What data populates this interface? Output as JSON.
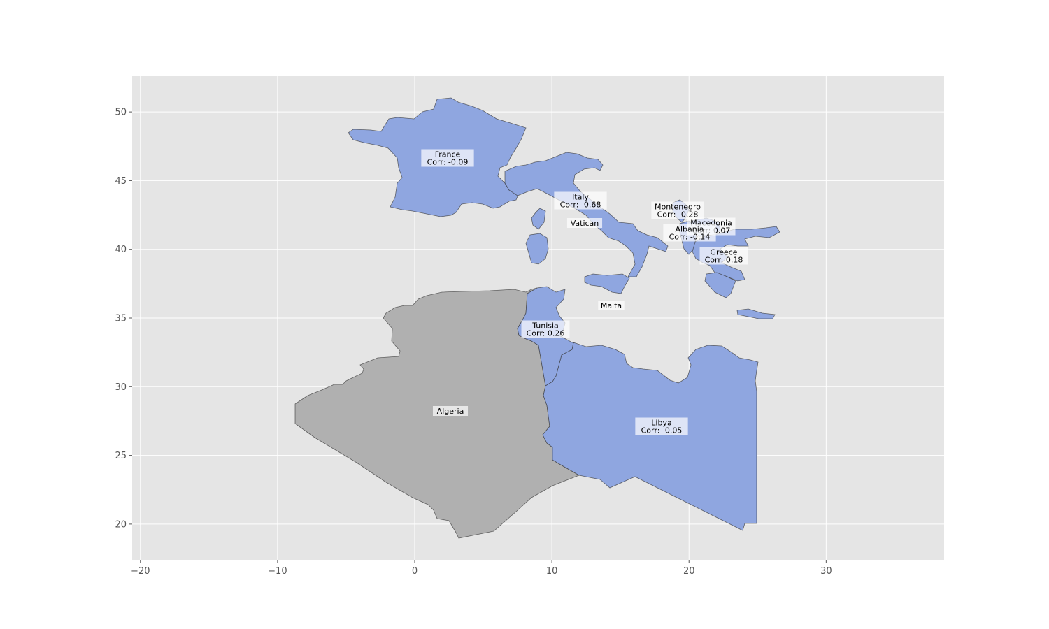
{
  "colors": {
    "axes_background": "#e5e5e5",
    "grid": "#ffffff",
    "tick_text": "#555555",
    "highlighted_country": "#8fa6e0",
    "other_country": "#b0b0b0",
    "label_box": "#ffffff"
  },
  "axes": {
    "x_ticks": [
      -20,
      -10,
      0,
      10,
      20,
      30
    ],
    "y_ticks": [
      20,
      25,
      30,
      35,
      40,
      45,
      50
    ],
    "x_tick_labels": [
      "−20",
      "−10",
      "0",
      "10",
      "20",
      "30"
    ],
    "y_tick_labels": [
      "20",
      "25",
      "30",
      "35",
      "40",
      "45",
      "50"
    ],
    "xlim": [
      -20.6,
      38.6
    ],
    "ylim": [
      17.4,
      52.6
    ],
    "grid": true
  },
  "regions": [
    {
      "name": "France",
      "corr_text": "Corr: -0.09",
      "highlighted": true
    },
    {
      "name": "Italy",
      "corr_text": "Corr: -0.68",
      "highlighted": true
    },
    {
      "name": "Vatican",
      "corr_text": "",
      "highlighted": true
    },
    {
      "name": "Montenegro",
      "corr_text": "Corr: -0.28",
      "highlighted": true
    },
    {
      "name": "Macedonia",
      "corr_text": "Corr: 0.07",
      "highlighted": true
    },
    {
      "name": "Albania",
      "corr_text": "Corr: -0.14",
      "highlighted": true
    },
    {
      "name": "Greece",
      "corr_text": "Corr: 0.18",
      "highlighted": true
    },
    {
      "name": "Malta",
      "corr_text": "",
      "highlighted": true
    },
    {
      "name": "Tunisia",
      "corr_text": "Corr: 0.26",
      "highlighted": true
    },
    {
      "name": "Algeria",
      "corr_text": "",
      "highlighted": false
    },
    {
      "name": "Libya",
      "corr_text": "Corr: -0.05",
      "highlighted": true
    }
  ]
}
